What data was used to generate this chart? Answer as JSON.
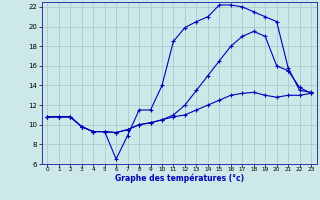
{
  "bg_color": "#cce8e8",
  "grid_color": "#aacccc",
  "line_color": "#0000bb",
  "xlabel": "Graphe des températures (°c)",
  "ylim": [
    6,
    22.5
  ],
  "xlim": [
    -0.5,
    23.5
  ],
  "yticks": [
    6,
    8,
    10,
    12,
    14,
    16,
    18,
    20,
    22
  ],
  "xticks": [
    0,
    1,
    2,
    3,
    4,
    5,
    6,
    7,
    8,
    9,
    10,
    11,
    12,
    13,
    14,
    15,
    16,
    17,
    18,
    19,
    20,
    21,
    22,
    23
  ],
  "curve1_x": [
    0,
    1,
    2,
    3,
    4,
    5,
    6,
    7,
    8,
    9,
    10,
    11,
    12,
    13,
    14,
    15,
    16,
    17,
    18,
    19,
    20,
    21,
    22,
    23
  ],
  "curve1_y": [
    10.8,
    10.8,
    10.8,
    9.8,
    9.3,
    9.3,
    6.5,
    8.9,
    11.5,
    11.5,
    14.0,
    18.5,
    19.9,
    20.5,
    21.0,
    22.2,
    22.2,
    22.0,
    21.5,
    21.0,
    20.5,
    15.8,
    13.5,
    13.3
  ],
  "curve2_x": [
    0,
    1,
    2,
    3,
    4,
    5,
    6,
    7,
    8,
    9,
    10,
    11,
    12,
    13,
    14,
    15,
    16,
    17,
    18,
    19,
    20,
    21,
    22,
    23
  ],
  "curve2_y": [
    10.8,
    10.8,
    10.8,
    9.8,
    9.3,
    9.3,
    9.2,
    9.5,
    10.0,
    10.2,
    10.5,
    11.0,
    12.0,
    13.5,
    15.0,
    16.5,
    18.0,
    19.0,
    19.5,
    19.0,
    16.0,
    15.5,
    13.8,
    13.2
  ],
  "curve3_x": [
    0,
    1,
    2,
    3,
    4,
    5,
    6,
    7,
    8,
    9,
    10,
    11,
    12,
    13,
    14,
    15,
    16,
    17,
    18,
    19,
    20,
    21,
    22,
    23
  ],
  "curve3_y": [
    10.8,
    10.8,
    10.8,
    9.8,
    9.3,
    9.3,
    9.2,
    9.5,
    10.0,
    10.2,
    10.5,
    10.8,
    11.0,
    11.5,
    12.0,
    12.5,
    13.0,
    13.2,
    13.3,
    13.0,
    12.8,
    13.0,
    13.0,
    13.2
  ]
}
